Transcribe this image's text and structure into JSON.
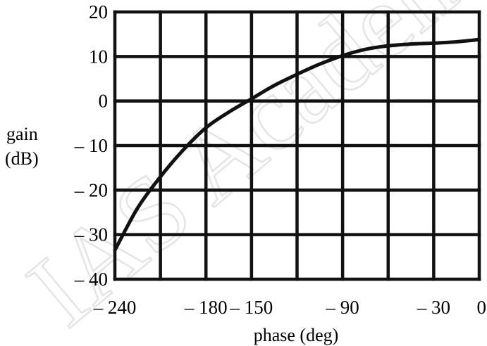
{
  "watermark": "IAS Academy",
  "chart_data": {
    "type": "line",
    "title": "",
    "xlabel": "phase (deg)",
    "ylabel_lines": [
      "gain",
      "(dB)"
    ],
    "xlim": [
      -240,
      0
    ],
    "ylim": [
      -40,
      20
    ],
    "x_grid_lines": [
      -240,
      -210,
      -180,
      -150,
      -120,
      -90,
      -60,
      -30,
      0
    ],
    "y_grid_lines": [
      -40,
      -30,
      -20,
      -10,
      0,
      10,
      20
    ],
    "x_tick_labels": [
      {
        "value": -240,
        "label": "– 240"
      },
      {
        "value": -180,
        "label": "– 180"
      },
      {
        "value": -150,
        "label": "– 150"
      },
      {
        "value": -90,
        "label": "– 90"
      },
      {
        "value": -30,
        "label": "– 30"
      },
      {
        "value": 0,
        "label": "0"
      }
    ],
    "y_tick_labels": [
      {
        "value": 20,
        "label": "20"
      },
      {
        "value": 10,
        "label": "10"
      },
      {
        "value": 0,
        "label": "0"
      },
      {
        "value": -10,
        "label": "– 10"
      },
      {
        "value": -20,
        "label": "– 20"
      },
      {
        "value": -30,
        "label": "– 30"
      },
      {
        "value": -40,
        "label": "– 40"
      }
    ],
    "grid": true,
    "series": [
      {
        "x": [
          -240,
          -225,
          -210,
          -195,
          -180,
          -165,
          -150,
          -135,
          -120,
          -105,
          -90,
          -75,
          -60,
          -45,
          -30,
          -15,
          0
        ],
        "y": [
          -33.5,
          -24,
          -17,
          -11,
          -6,
          -2.5,
          0.5,
          3.5,
          6,
          8.3,
          10.2,
          11.6,
          12.4,
          12.8,
          13,
          13.3,
          13.8
        ]
      }
    ]
  }
}
